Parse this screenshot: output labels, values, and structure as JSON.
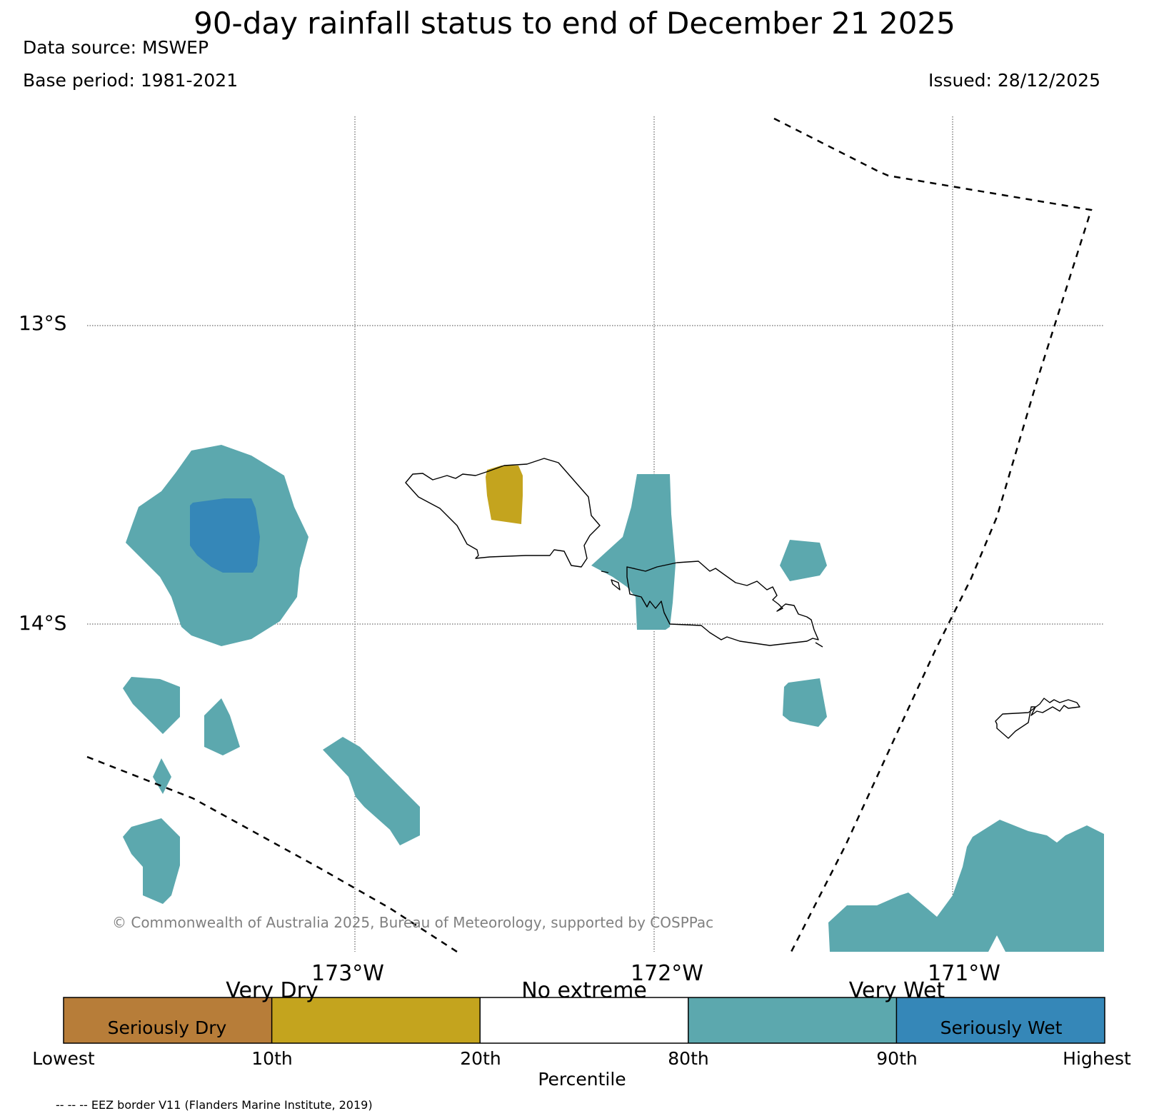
{
  "header": {
    "title": "90-day rainfall status to end of December 21 2025",
    "data_source": "Data source: MSWEP",
    "base_period": "Base period: 1981-2021",
    "issued": "Issued: 28/12/2025"
  },
  "map": {
    "lat_labels": [
      "13°S",
      "14°S"
    ],
    "lon_labels": [
      "173°W",
      "172°W",
      "171°W"
    ],
    "copyright": "© Commonwealth of Australia 2025, Bureau of Meteorology, supported by COSPPac",
    "regions": {
      "very_wet_color": "#5ca8ae",
      "seriously_wet_color": "#3587b8",
      "very_dry_color": "#c4a41e"
    }
  },
  "colorbar": {
    "categories_top": [
      "Very Dry",
      "No extreme",
      "Very Wet"
    ],
    "categories_inside": [
      "Seriously Dry",
      "Seriously Wet"
    ],
    "ticks": [
      "Lowest",
      "10th",
      "20th",
      "80th",
      "90th",
      "Highest"
    ],
    "title": "Percentile",
    "colors": [
      "#b77d39",
      "#c4a41e",
      "#ffffff",
      "#5ca8ae",
      "#3587b8"
    ]
  },
  "footer": {
    "eez_note": "-- -- -- EEZ border V11 (Flanders Marine Institute, 2019)"
  }
}
